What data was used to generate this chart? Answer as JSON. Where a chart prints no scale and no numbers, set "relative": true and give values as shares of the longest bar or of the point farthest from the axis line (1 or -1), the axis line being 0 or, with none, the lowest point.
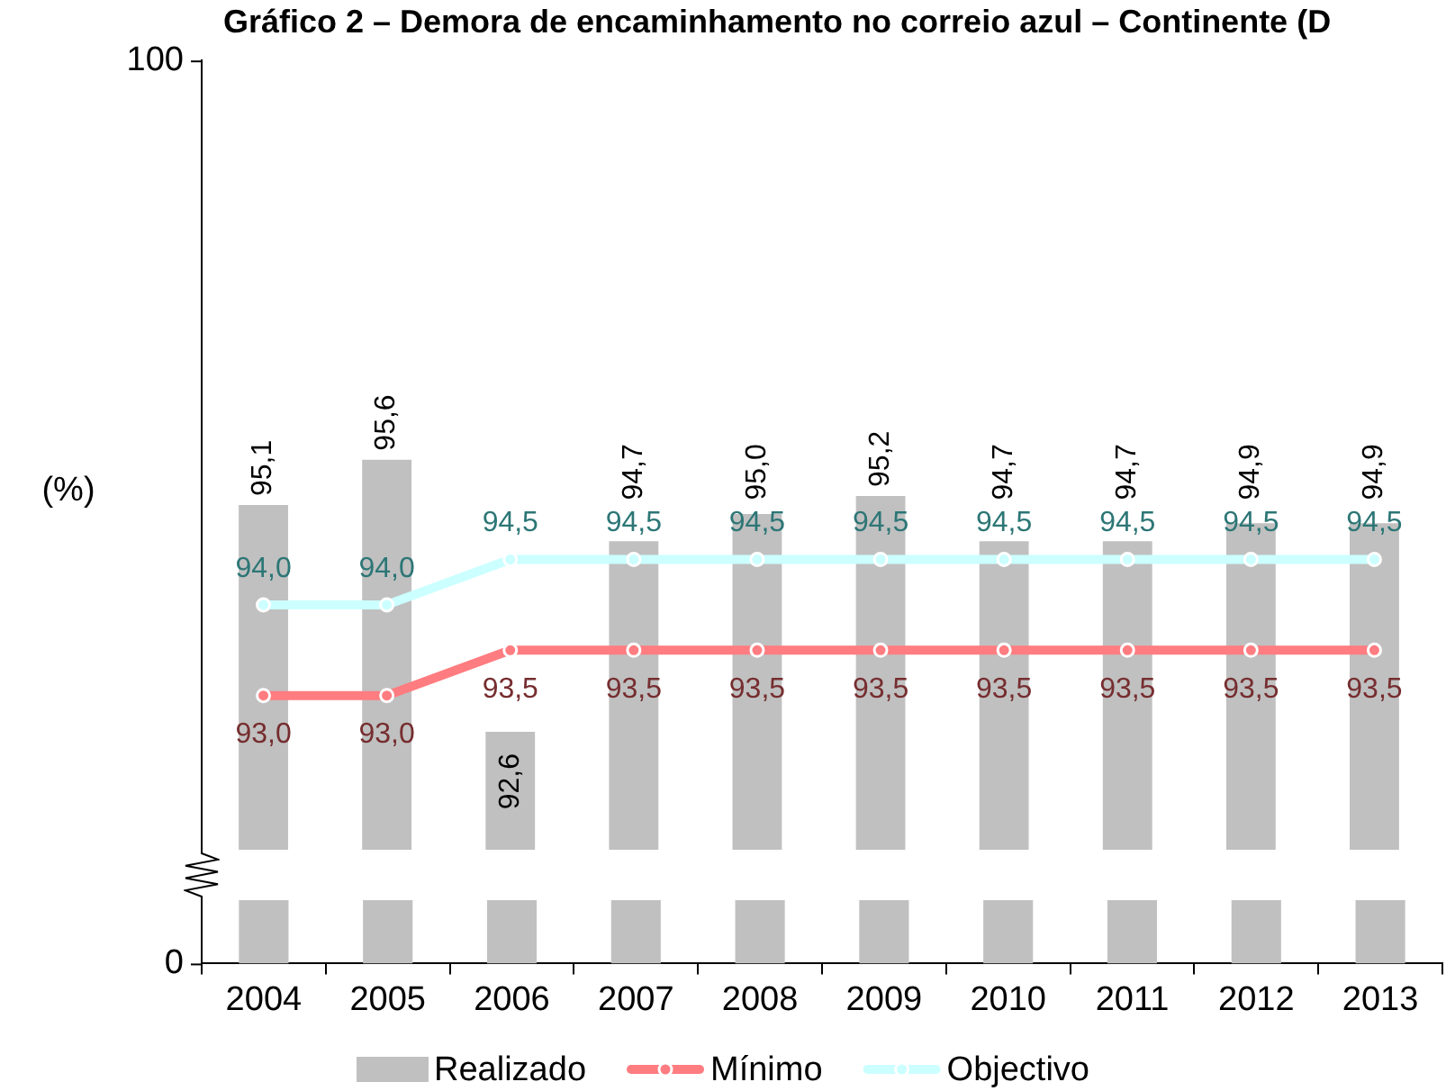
{
  "chart_data": [
    {
      "type": "bar",
      "title": "Gráfico 2 – Demora de encaminhamento no correio azul – Continente (D",
      "ylabel": "(%)",
      "categories": [
        "2004",
        "2005",
        "2006",
        "2007",
        "2008",
        "2009",
        "2010",
        "2011",
        "2012",
        "2013"
      ],
      "series": [
        {
          "name": "Realizado",
          "type": "bar",
          "color": "#c0c0c0",
          "values": [
            95.1,
            95.6,
            92.6,
            94.7,
            95.0,
            95.2,
            94.7,
            94.7,
            94.9,
            94.9
          ],
          "value_labels": [
            "95,1",
            "95,6",
            "92,6",
            "94,7",
            "95,0",
            "95,2",
            "94,7",
            "94,7",
            "94,9",
            "94,9"
          ]
        },
        {
          "name": "Mínimo",
          "type": "line",
          "color": "#ff7c80",
          "values": [
            93.0,
            93.0,
            93.5,
            93.5,
            93.5,
            93.5,
            93.5,
            93.5,
            93.5,
            93.5
          ],
          "value_labels": [
            "93,0",
            "93,0",
            "93,5",
            "93,5",
            "93,5",
            "93,5",
            "93,5",
            "93,5",
            "93,5",
            "93,5"
          ]
        },
        {
          "name": "Objectivo",
          "type": "line",
          "color": "#ccffff",
          "values": [
            94.0,
            94.0,
            94.5,
            94.5,
            94.5,
            94.5,
            94.5,
            94.5,
            94.5,
            94.5
          ],
          "value_labels": [
            "94,0",
            "94,0",
            "94,5",
            "94,5",
            "94,5",
            "94,5",
            "94,5",
            "94,5",
            "94,5",
            "94,5"
          ]
        }
      ],
      "ylim": [
        91.3,
        100
      ],
      "tick_labels": false,
      "annotations": [
        "100"
      ],
      "marker": "circle",
      "legend": "bottom",
      "grid": false
    },
    {
      "type": "bar",
      "categories": [
        "2004",
        "2005",
        "2006",
        "2007",
        "2008",
        "2009",
        "2010",
        "2011",
        "2012",
        "2013"
      ],
      "values": [
        1,
        1,
        1,
        1,
        1,
        1,
        1,
        1,
        1,
        1
      ],
      "color": "#c0c0c0",
      "relative": true,
      "tick_labels": "x",
      "annotations": [
        "0"
      ]
    }
  ]
}
